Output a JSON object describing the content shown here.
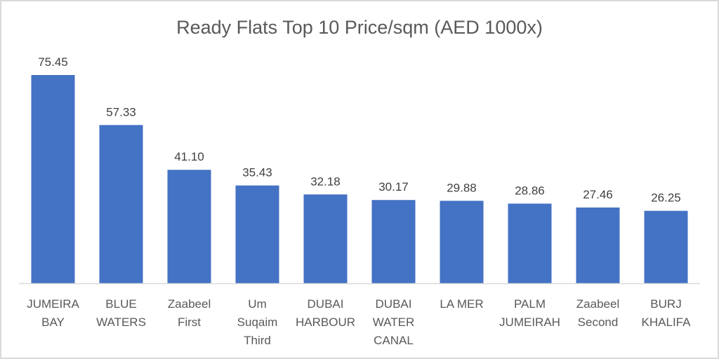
{
  "chart_data": {
    "type": "bar",
    "title": "Ready Flats Top 10 Price/sqm (AED 1000x)",
    "categories": [
      [
        "JUMEIRA",
        "BAY"
      ],
      [
        "BLUE",
        "WATERS"
      ],
      [
        "Zaabeel",
        "First"
      ],
      [
        "Um",
        "Suqaim",
        "Third"
      ],
      [
        "DUBAI",
        "HARBOUR"
      ],
      [
        "DUBAI",
        "WATER",
        "CANAL"
      ],
      [
        "LA MER"
      ],
      [
        "PALM",
        "JUMEIRAH"
      ],
      [
        "Zaabeel",
        "Second"
      ],
      [
        "BURJ",
        "KHALIFA"
      ]
    ],
    "values": [
      75.45,
      57.33,
      41.1,
      35.43,
      32.18,
      30.17,
      29.88,
      28.86,
      27.46,
      26.25
    ],
    "value_labels": [
      "75.45",
      "57.33",
      "41.10",
      "35.43",
      "32.18",
      "30.17",
      "29.88",
      "28.86",
      "27.46",
      "26.25"
    ],
    "xlabel": "",
    "ylabel": "",
    "ylim": [
      0,
      80
    ],
    "grid": false,
    "legend": "none",
    "bar_color": "#4472c4"
  }
}
